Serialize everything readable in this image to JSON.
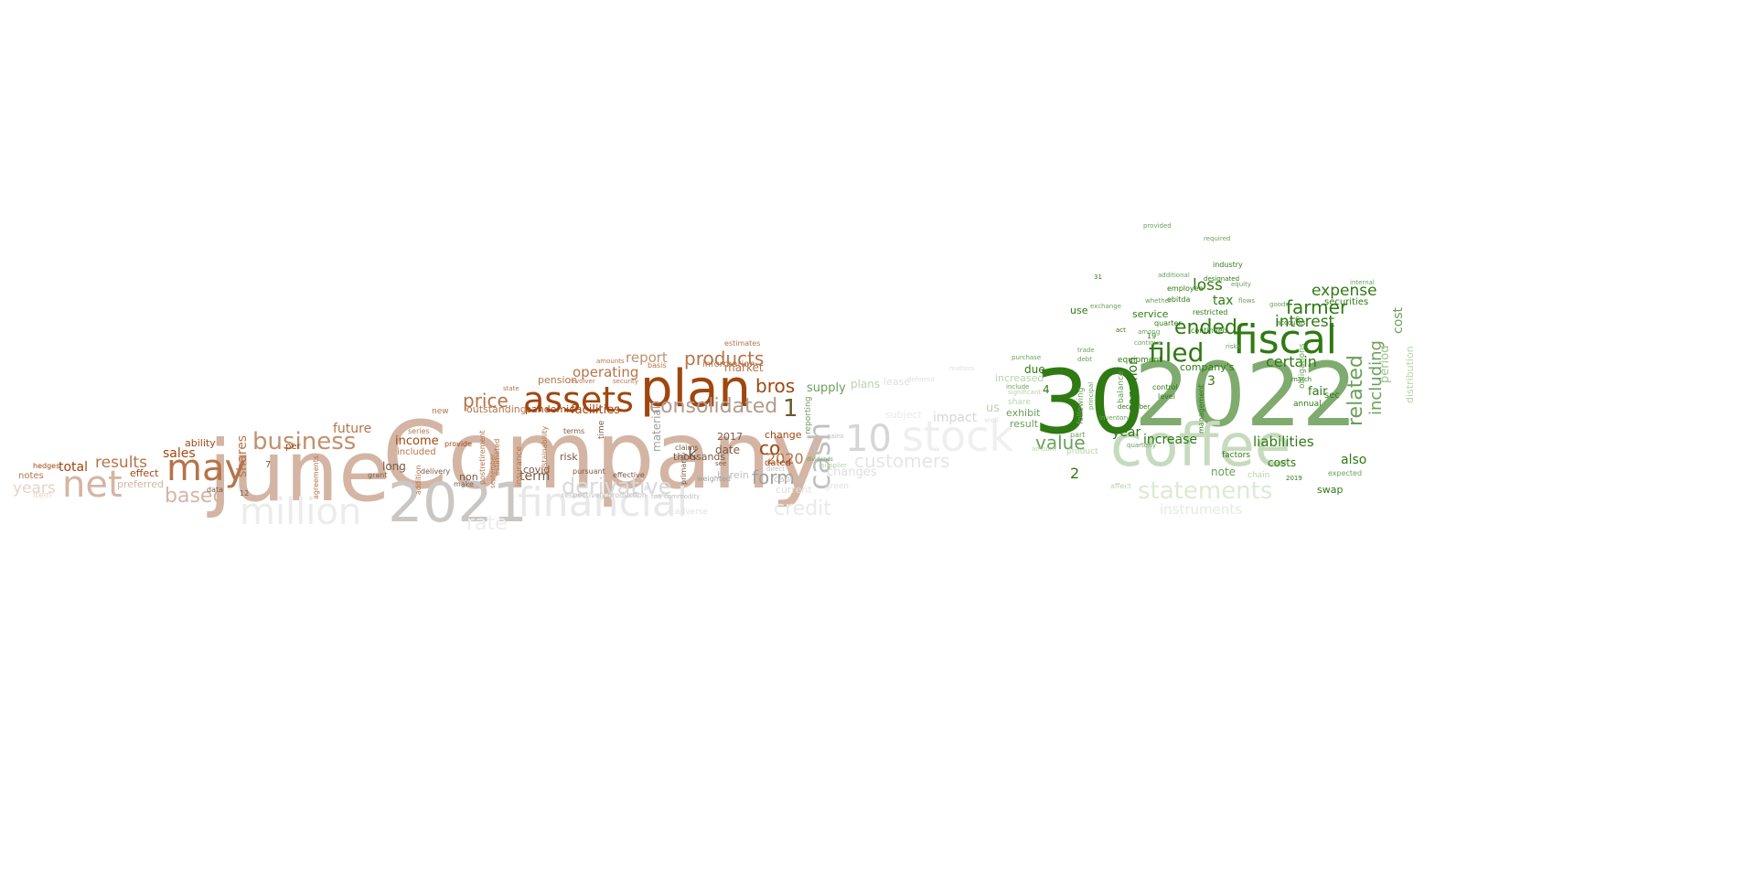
{
  "word_cloud": {
    "palette": {
      "brown_dark": "#a0460f",
      "brown_mid": "#b5744a",
      "brown_light": "#d4b5a3",
      "gray_dark": "#bfbfbf",
      "gray_light": "#e6e6e6",
      "green_dark": "#2f7a12",
      "green_mid": "#6a9f5a",
      "green_light": "#b9d2ad"
    },
    "words": [
      {
        "text": "Company",
        "color": "#d4b5a3"
      },
      {
        "text": "june",
        "color": "#d4b5a3"
      },
      {
        "text": "2021",
        "color": "#c9c6c4"
      },
      {
        "text": "plan",
        "color": "#a0460f"
      },
      {
        "text": "assets",
        "color": "#a0460f"
      },
      {
        "text": "may",
        "color": "#b5744a"
      },
      {
        "text": "net",
        "color": "#d4b5a3"
      },
      {
        "text": "business",
        "color": "#c0916f"
      },
      {
        "text": "million",
        "color": "#ececec"
      },
      {
        "text": "financial",
        "color": "#e8e8e8"
      },
      {
        "text": "derivative",
        "color": "#d9d9d9"
      },
      {
        "text": "consolidated",
        "color": "#b39a8a"
      },
      {
        "text": "price",
        "color": "#b5744a"
      },
      {
        "text": "products",
        "color": "#b5744a"
      },
      {
        "text": "bros",
        "color": "#a0460f"
      },
      {
        "text": "report",
        "color": "#c0916f"
      },
      {
        "text": "operating",
        "color": "#b5744a"
      },
      {
        "text": "based",
        "color": "#d4b5a3"
      },
      {
        "text": "results",
        "color": "#b5744a"
      },
      {
        "text": "total",
        "color": "#a0460f"
      },
      {
        "text": "years",
        "color": "#e6d3c6"
      },
      {
        "text": "future",
        "color": "#b5744a"
      },
      {
        "text": "sales",
        "color": "#a0460f"
      },
      {
        "text": "income",
        "color": "#a0460f"
      },
      {
        "text": "shares",
        "color": "#b5744a"
      },
      {
        "text": "term",
        "color": "#7a5a44"
      },
      {
        "text": "facilities",
        "color": "#a0460f"
      },
      {
        "text": "outstanding",
        "color": "#b5744a"
      },
      {
        "text": "pandemic",
        "color": "#a0460f"
      },
      {
        "text": "cash",
        "color": "#bfbfbf"
      },
      {
        "text": "form",
        "color": "#a0a0a0"
      },
      {
        "text": "co",
        "color": "#a0460f"
      },
      {
        "text": "10",
        "color": "#d6d6d6"
      },
      {
        "text": "stock",
        "color": "#efefef"
      },
      {
        "text": "customers",
        "color": "#e6e6e6"
      },
      {
        "text": "credit",
        "color": "#eaeaea"
      },
      {
        "text": "rate",
        "color": "#ededed"
      },
      {
        "text": "material",
        "color": "#a0a0a0"
      },
      {
        "text": "k",
        "color": "#7a5a44"
      },
      {
        "text": "1",
        "color": "#6a5a2a"
      },
      {
        "text": "2020",
        "color": "#b5744a"
      },
      {
        "text": "supply",
        "color": "#6a9f5a"
      },
      {
        "text": "impact",
        "color": "#d6d6d6"
      },
      {
        "text": "30",
        "color": "#2f7a12"
      },
      {
        "text": "2022",
        "color": "#7fab6f"
      },
      {
        "text": "coffee",
        "color": "#c6dbbd"
      },
      {
        "text": "fiscal",
        "color": "#2f7a12"
      },
      {
        "text": "filed",
        "color": "#2f7a12"
      },
      {
        "text": "ended",
        "color": "#2f7a12"
      },
      {
        "text": "statements",
        "color": "#dde9d7"
      },
      {
        "text": "value",
        "color": "#6a9f5a"
      },
      {
        "text": "farmer",
        "color": "#2f7a12"
      },
      {
        "text": "interest",
        "color": "#2f7a12"
      },
      {
        "text": "expense",
        "color": "#2f7a12"
      },
      {
        "text": "loss",
        "color": "#2f7a12"
      },
      {
        "text": "related",
        "color": "#6a9f5a"
      },
      {
        "text": "including",
        "color": "#6a9f5a"
      },
      {
        "text": "cost",
        "color": "#6a9f5a"
      },
      {
        "text": "period",
        "color": "#9fc290"
      },
      {
        "text": "certain",
        "color": "#2f7a12"
      },
      {
        "text": "liabilities",
        "color": "#2f7a12"
      },
      {
        "text": "increase",
        "color": "#2f7a12"
      },
      {
        "text": "common",
        "color": "#2f7a12"
      },
      {
        "text": "year",
        "color": "#2f7a12"
      },
      {
        "text": "tax",
        "color": "#2f7a12"
      },
      {
        "text": "fair",
        "color": "#2f7a12"
      },
      {
        "text": "instruments",
        "color": "#e3ede0"
      },
      {
        "text": "also",
        "color": "#2f7a12"
      },
      {
        "text": "costs",
        "color": "#2f7a12"
      },
      {
        "text": "note",
        "color": "#6a9f5a"
      },
      {
        "text": "service",
        "color": "#2f7a12"
      },
      {
        "text": "due",
        "color": "#2f7a12"
      },
      {
        "text": "distribution",
        "color": "#b9d2ad"
      },
      {
        "text": "securities",
        "color": "#2f7a12"
      },
      {
        "text": "company's",
        "color": "#2f7a12"
      },
      {
        "text": "2",
        "color": "#2f7a12"
      },
      {
        "text": "3",
        "color": "#2f7a12"
      },
      {
        "text": "4",
        "color": "#2f7a12"
      },
      {
        "text": "use",
        "color": "#2f7a12"
      },
      {
        "text": "exhibit",
        "color": "#6a9f5a"
      },
      {
        "text": "swap",
        "color": "#2f7a12"
      },
      {
        "text": "changes",
        "color": "#e0e0e0"
      },
      {
        "text": "plans",
        "color": "#b9d2ad"
      },
      {
        "text": "lease",
        "color": "#e0e0e0"
      },
      {
        "text": "us",
        "color": "#b9d2ad"
      },
      {
        "text": "increased",
        "color": "#b9d2ad"
      },
      {
        "text": "result",
        "color": "#6a9f5a"
      },
      {
        "text": "subject",
        "color": "#eaeaea"
      },
      {
        "text": "ability",
        "color": "#a0460f"
      },
      {
        "text": "effect",
        "color": "#a0460f"
      },
      {
        "text": "preferred",
        "color": "#d4b5a3"
      },
      {
        "text": "notes",
        "color": "#b5744a"
      },
      {
        "text": "included",
        "color": "#b5744a"
      },
      {
        "text": "pension",
        "color": "#b5744a"
      },
      {
        "text": "risk",
        "color": "#7a5a44"
      },
      {
        "text": "covid",
        "color": "#7a5a44"
      },
      {
        "text": "long",
        "color": "#7a5a44"
      },
      {
        "text": "non",
        "color": "#7a5a44"
      },
      {
        "text": "thousands",
        "color": "#7a5a44"
      },
      {
        "text": "date",
        "color": "#7a5a44"
      },
      {
        "text": "market",
        "color": "#b5744a"
      },
      {
        "text": "information",
        "color": "#b5744a"
      },
      {
        "text": "change",
        "color": "#a0460f"
      },
      {
        "text": "dated",
        "color": "#a0460f"
      },
      {
        "text": "current",
        "color": "#e0e0e0"
      },
      {
        "text": "capital",
        "color": "#bfbfbf"
      },
      {
        "text": "2017",
        "color": "#7a5a44"
      },
      {
        "text": "herein",
        "color": "#bfbfbf"
      },
      {
        "text": "estimates",
        "color": "#b5744a"
      },
      {
        "text": "reporting",
        "color": "#6a9f5a"
      },
      {
        "text": "quarter",
        "color": "#2f7a12"
      },
      {
        "text": "management",
        "color": "#2f7a12"
      },
      {
        "text": "equipment",
        "color": "#2f7a12"
      },
      {
        "text": "balance",
        "color": "#6a9f5a"
      },
      {
        "text": "industry",
        "color": "#2f7a12"
      },
      {
        "text": "employee",
        "color": "#2f7a12"
      },
      {
        "text": "ebitda",
        "color": "#2f7a12"
      },
      {
        "text": "restricted",
        "color": "#2f7a12"
      },
      {
        "text": "continued",
        "color": "#2f7a12"
      },
      {
        "text": "following",
        "color": "#6a9f5a"
      },
      {
        "text": "share",
        "color": "#b9d2ad"
      },
      {
        "text": "product",
        "color": "#b9d2ad"
      },
      {
        "text": "level",
        "color": "#2f7a12"
      },
      {
        "text": "control",
        "color": "#2f7a12"
      },
      {
        "text": "obligations",
        "color": "#6a9f5a"
      },
      {
        "text": "sec",
        "color": "#2f7a12"
      },
      {
        "text": "annual",
        "color": "#2f7a12"
      },
      {
        "text": "expected",
        "color": "#6a9f5a"
      },
      {
        "text": "factors",
        "color": "#2f7a12"
      },
      {
        "text": "chain",
        "color": "#b9d2ad"
      },
      {
        "text": "6",
        "color": "#2f7a12"
      },
      {
        "text": "accounts",
        "color": "#2f7a12"
      },
      {
        "text": "provided",
        "color": "#6a9f5a"
      },
      {
        "text": "required",
        "color": "#6a9f5a"
      },
      {
        "text": "additional",
        "color": "#6a9f5a"
      },
      {
        "text": "designated",
        "color": "#2f7a12"
      },
      {
        "text": "internal",
        "color": "#6a9f5a"
      },
      {
        "text": "purchase",
        "color": "#6a9f5a"
      },
      {
        "text": "act",
        "color": "#2f7a12"
      },
      {
        "text": "december",
        "color": "#2f7a12"
      },
      {
        "text": "inventory",
        "color": "#6a9f5a"
      },
      {
        "text": "continue",
        "color": "#6a9f5a"
      },
      {
        "text": "trade",
        "color": "#6a9f5a"
      },
      {
        "text": "debt",
        "color": "#6a9f5a"
      },
      {
        "text": "exchange",
        "color": "#6a9f5a"
      },
      {
        "text": "include",
        "color": "#6a9f5a"
      },
      {
        "text": "amount",
        "color": "#b9d2ad"
      },
      {
        "text": "significant",
        "color": "#b9d2ad"
      },
      {
        "text": "31",
        "color": "#2f7a12"
      },
      {
        "text": "19",
        "color": "#2f7a12"
      },
      {
        "text": "march",
        "color": "#2f7a12"
      },
      {
        "text": "2019",
        "color": "#2f7a12"
      },
      {
        "text": "deferred",
        "color": "#e0e0e0"
      },
      {
        "text": "see",
        "color": "#7a5a44"
      },
      {
        "text": "12",
        "color": "#7a5a44"
      },
      {
        "text": "data",
        "color": "#7a5a44"
      },
      {
        "text": "terms",
        "color": "#7a5a44"
      },
      {
        "text": "time",
        "color": "#7a5a44"
      },
      {
        "text": "new",
        "color": "#b5744a"
      },
      {
        "text": "series",
        "color": "#b5744a"
      },
      {
        "text": "addition",
        "color": "#b5744a"
      },
      {
        "text": "provide",
        "color": "#a0460f"
      },
      {
        "text": "pursuant",
        "color": "#7a5a44"
      },
      {
        "text": "effective",
        "color": "#7a5a44"
      },
      {
        "text": "claims",
        "color": "#7a5a44"
      },
      {
        "text": "weighted",
        "color": "#a0a0a0"
      },
      {
        "text": "primarily",
        "color": "#7a5a44"
      },
      {
        "text": "insurance",
        "color": "#b5744a"
      },
      {
        "text": "sustainability",
        "color": "#b5744a"
      },
      {
        "text": "hedges",
        "color": "#a0460f"
      },
      {
        "text": "grant",
        "color": "#7a5a44"
      },
      {
        "text": "agreements",
        "color": "#b5744a"
      },
      {
        "text": "basis",
        "color": "#b5744a"
      },
      {
        "text": "amounts",
        "color": "#b5744a"
      },
      {
        "text": "revolver",
        "color": "#b5744a"
      },
      {
        "text": "security",
        "color": "#b5744a"
      },
      {
        "text": "state",
        "color": "#b5744a"
      },
      {
        "text": "respectively",
        "color": "#bfbfbf"
      },
      {
        "text": "production",
        "color": "#bfbfbf"
      },
      {
        "text": "tea",
        "color": "#bfbfbf"
      },
      {
        "text": "commodity",
        "color": "#bfbfbf"
      },
      {
        "text": "make",
        "color": "#7a5a44"
      },
      {
        "text": "delivery",
        "color": "#7a5a44"
      },
      {
        "text": "estimated",
        "color": "#b5744a"
      },
      {
        "text": "september",
        "color": "#b5744a"
      },
      {
        "text": "postretirement",
        "color": "#b5744a"
      },
      {
        "text": "7",
        "color": "#7a5a44"
      },
      {
        "text": "per",
        "color": "#a0460f"
      },
      {
        "text": "adverse",
        "color": "#e0e0e0"
      },
      {
        "text": "supplier",
        "color": "#b9d2ad"
      },
      {
        "text": "green",
        "color": "#e0e0e0"
      },
      {
        "text": "affect",
        "color": "#b9d2ad"
      },
      {
        "text": "part",
        "color": "#6a9f5a"
      },
      {
        "text": "principal",
        "color": "#6a9f5a"
      },
      {
        "text": "quarterly",
        "color": "#6a9f5a"
      },
      {
        "text": "goods",
        "color": "#6a9f5a"
      },
      {
        "text": "flows",
        "color": "#6a9f5a"
      },
      {
        "text": "risks",
        "color": "#6a9f5a"
      },
      {
        "text": "equity",
        "color": "#6a9f5a"
      },
      {
        "text": "whether",
        "color": "#6a9f5a"
      },
      {
        "text": "among",
        "color": "#6a9f5a"
      },
      {
        "text": "item",
        "color": "#e6d3c6"
      },
      {
        "text": "well",
        "color": "#e6e6e6"
      },
      {
        "text": "matters",
        "color": "#e0e0e0"
      },
      {
        "text": "direct",
        "color": "#bfbfbf"
      },
      {
        "text": "dividends",
        "color": "#6a9f5a"
      },
      {
        "text": "gains",
        "color": "#bfbfbf"
      }
    ]
  }
}
